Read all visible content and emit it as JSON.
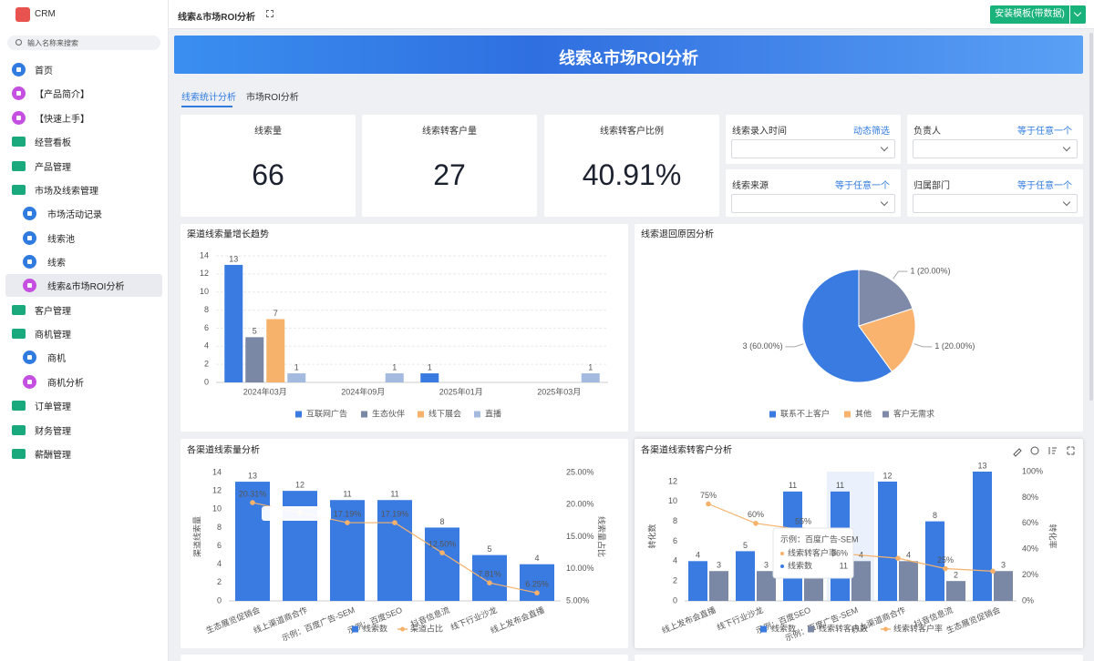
{
  "sidebar": {
    "app_name": "CRM",
    "search_placeholder": "输入名称来搜索",
    "menu": [
      "首页",
      "【产品简介】",
      "【快速上手】",
      "经营看板",
      "产品管理",
      "市场及线索管理",
      "市场活动记录",
      "线索池",
      "线索",
      "线索&市场ROI分析",
      "客户管理",
      "商机管理",
      "商机",
      "商机分析",
      "订单管理",
      "财务管理",
      "薪酬管理"
    ]
  },
  "header": {
    "title": "线索&市场ROI分析",
    "install_button": "安装模板(带数据)"
  },
  "banner": {
    "title": "线索&市场ROI分析"
  },
  "tabs": [
    "线索统计分析",
    "市场ROI分析"
  ],
  "kpis": [
    {
      "label": "线索量",
      "value": 66
    },
    {
      "label": "线索转客户量",
      "value": 27
    },
    {
      "label": "线索转客户比例",
      "value": "40.91%"
    }
  ],
  "filters": [
    {
      "label": "线索录入时间",
      "operator": "动态筛选"
    },
    {
      "label": "负责人",
      "operator": "等于任意一个"
    },
    {
      "label": "线索来源",
      "operator": "等于任意一个"
    },
    {
      "label": "归属部门",
      "operator": "等于任意一个"
    }
  ],
  "chart_data": [
    {
      "type": "bar",
      "title": "渠道线索量增长趋势",
      "categories": [
        "2024年03月",
        "2024年09月",
        "2025年01月",
        "2025年03月"
      ],
      "series": [
        {
          "name": "互联网广告",
          "color": "#3a7be2",
          "values": [
            13,
            null,
            1,
            null
          ]
        },
        {
          "name": "生态伙伴",
          "color": "#7a88a6",
          "values": [
            5,
            null,
            null,
            null
          ]
        },
        {
          "name": "线下展会",
          "color": "#f6b26b",
          "values": [
            7,
            null,
            null,
            null
          ]
        },
        {
          "name": "直播",
          "color": "#a5badf",
          "values": [
            1,
            1,
            null,
            1
          ]
        }
      ],
      "ylim": [
        0,
        14
      ],
      "yticks": [
        0,
        2,
        4,
        6,
        8,
        10,
        12,
        14
      ],
      "grid": true
    },
    {
      "type": "pie",
      "title": "线索退回原因分析",
      "categories": [
        "联系不上客户",
        "其他",
        "客户无需求"
      ],
      "values": [
        3,
        1,
        1
      ],
      "value_labels": [
        "3 (60.00%)",
        "1 (20.00%)",
        "1 (20.00%)"
      ],
      "colors": [
        "#3a7be2",
        "#f9b36f",
        "#7f8aa8"
      ]
    },
    {
      "type": "combo",
      "title": "各渠道线索量分析",
      "ylabel": "渠道线索量",
      "y2label": "线索量占比",
      "categories": [
        "生态展览促销会",
        "线上渠道商合作",
        "示例：百度广告-SEM",
        "示例：百度SEO",
        "抖音信息流",
        "线下行业沙龙",
        "线上发布会直播"
      ],
      "series": [
        {
          "name": "线索数",
          "type": "bar",
          "color": "#3a7be2",
          "values": [
            13,
            12,
            11,
            11,
            8,
            5,
            4
          ]
        },
        {
          "name": "渠道占比",
          "type": "line",
          "axis": "y2",
          "color": "#f6b26b",
          "values": [
            20.31,
            18.75,
            17.19,
            17.19,
            12.5,
            7.81,
            6.25
          ],
          "value_labels": [
            "20.31%",
            null,
            "17.19%",
            "17.19%",
            "12.50%",
            "7.81%",
            "6.25%"
          ]
        }
      ],
      "ylim": [
        0,
        14
      ],
      "yticks": [
        0,
        2,
        4,
        6,
        8,
        10,
        12,
        14
      ],
      "y2lim": [
        5,
        25
      ],
      "y2ticks": [
        {
          "value": 5,
          "label": "5.00%"
        },
        {
          "value": 10,
          "label": "10.00%"
        },
        {
          "value": 15,
          "label": "15.00%"
        },
        {
          "value": 20,
          "label": "20.00%"
        },
        {
          "value": 25,
          "label": "25.00%"
        }
      ],
      "grid": false
    },
    {
      "type": "combo",
      "title": "各渠道线索转客户分析",
      "ylabel": "转化数",
      "y2label": "转化率",
      "categories": [
        "线上发布会直播",
        "线下行业沙龙",
        "示例：百度SEO",
        "示例：百度广告-SEM",
        "线上渠道商合作",
        "抖音信息流",
        "生态展览促销会"
      ],
      "series": [
        {
          "name": "线索数",
          "type": "bar",
          "color": "#3a7be2",
          "values": [
            4,
            5,
            11,
            11,
            12,
            8,
            13
          ]
        },
        {
          "name": "线索转客户数",
          "type": "bar",
          "color": "#7a88a6",
          "values": [
            3,
            3,
            6,
            4,
            4,
            2,
            3
          ]
        },
        {
          "name": "线索转客户率",
          "type": "line",
          "axis": "y2",
          "color": "#f6b26b",
          "values": [
            75,
            60,
            55,
            36,
            33,
            25,
            23
          ],
          "value_labels": [
            "75%",
            "60%",
            "55%",
            null,
            null,
            "25%",
            null
          ]
        }
      ],
      "ylim": [
        0,
        13
      ],
      "yticks": [
        0,
        2,
        4,
        6,
        8,
        10,
        12
      ],
      "y2lim": [
        0,
        100
      ],
      "y2ticks": [
        {
          "value": 0,
          "label": "0%"
        },
        {
          "value": 20,
          "label": "20%"
        },
        {
          "value": 40,
          "label": "40%"
        },
        {
          "value": 60,
          "label": "60%"
        },
        {
          "value": 80,
          "label": "80%"
        },
        {
          "value": 100,
          "label": "100%"
        }
      ],
      "grid": false,
      "tooltip": {
        "title": "示例：百度广告-SEM",
        "rows": [
          {
            "name": "线索转客户率",
            "value": "36%"
          },
          {
            "name": "线索数",
            "value": 11
          }
        ]
      }
    }
  ]
}
